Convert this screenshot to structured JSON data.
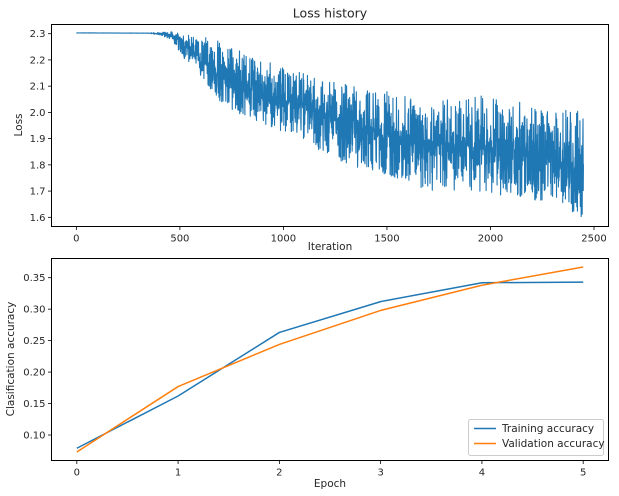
{
  "chart_data": [
    {
      "type": "line",
      "title": "Loss history",
      "xlabel": "Iteration",
      "ylabel": "Loss",
      "xlim": [
        -120,
        2570
      ],
      "ylim": [
        1.565,
        2.335
      ],
      "xticks": [
        0,
        500,
        1000,
        1500,
        2000,
        2500
      ],
      "yticks": [
        1.6,
        1.7,
        1.8,
        1.9,
        2.0,
        2.1,
        2.2,
        2.3
      ],
      "grid": false,
      "series": [
        {
          "color": "#1f77b4",
          "n_points": 2450,
          "envelope": {
            "x": [
              0,
              350,
              400,
              450,
              500,
              550,
              600,
              700,
              800,
              900,
              1000,
              1100,
              1200,
              1300,
              1400,
              1500,
              1600,
              1700,
              1800,
              1900,
              2000,
              2100,
              2200,
              2300,
              2400,
              2450
            ],
            "mean": [
              2.303,
              2.302,
              2.3,
              2.295,
              2.275,
              2.25,
              2.2,
              2.14,
              2.095,
              2.07,
              2.045,
              2.03,
              2.0,
              1.965,
              1.935,
              1.915,
              1.9,
              1.895,
              1.88,
              1.87,
              1.86,
              1.85,
              1.835,
              1.82,
              1.8,
              1.76
            ],
            "low": [
              2.303,
              2.301,
              2.295,
              2.28,
              2.23,
              2.17,
              2.14,
              2.03,
              1.99,
              1.96,
              1.92,
              1.9,
              1.84,
              1.8,
              1.78,
              1.76,
              1.73,
              1.7,
              1.7,
              1.69,
              1.69,
              1.68,
              1.66,
              1.65,
              1.62,
              1.59
            ],
            "high": [
              2.304,
              2.304,
              2.305,
              2.31,
              2.3,
              2.295,
              2.29,
              2.27,
              2.23,
              2.2,
              2.17,
              2.15,
              2.12,
              2.11,
              2.09,
              2.08,
              2.06,
              2.06,
              2.05,
              2.06,
              2.07,
              2.06,
              2.02,
              2.0,
              2.03,
              2.0
            ]
          }
        }
      ]
    },
    {
      "type": "line",
      "title": "",
      "xlabel": "Epoch",
      "ylabel": "Clasification accuracy",
      "xlim": [
        -0.25,
        5.25
      ],
      "ylim": [
        0.0595,
        0.3805
      ],
      "xticks": [
        0,
        1,
        2,
        3,
        4,
        5
      ],
      "yticks": [
        0.1,
        0.15,
        0.2,
        0.25,
        0.3,
        0.35
      ],
      "grid": false,
      "legend_position": "lower-right",
      "x": [
        0,
        1,
        2,
        3,
        4,
        5
      ],
      "series": [
        {
          "name": "Training accuracy",
          "color": "#1f77b4",
          "values": [
            0.079,
            0.162,
            0.263,
            0.312,
            0.342,
            0.343
          ]
        },
        {
          "name": "Validation accuracy",
          "color": "#ff7f0e",
          "values": [
            0.073,
            0.177,
            0.244,
            0.298,
            0.338,
            0.367
          ]
        }
      ]
    }
  ]
}
